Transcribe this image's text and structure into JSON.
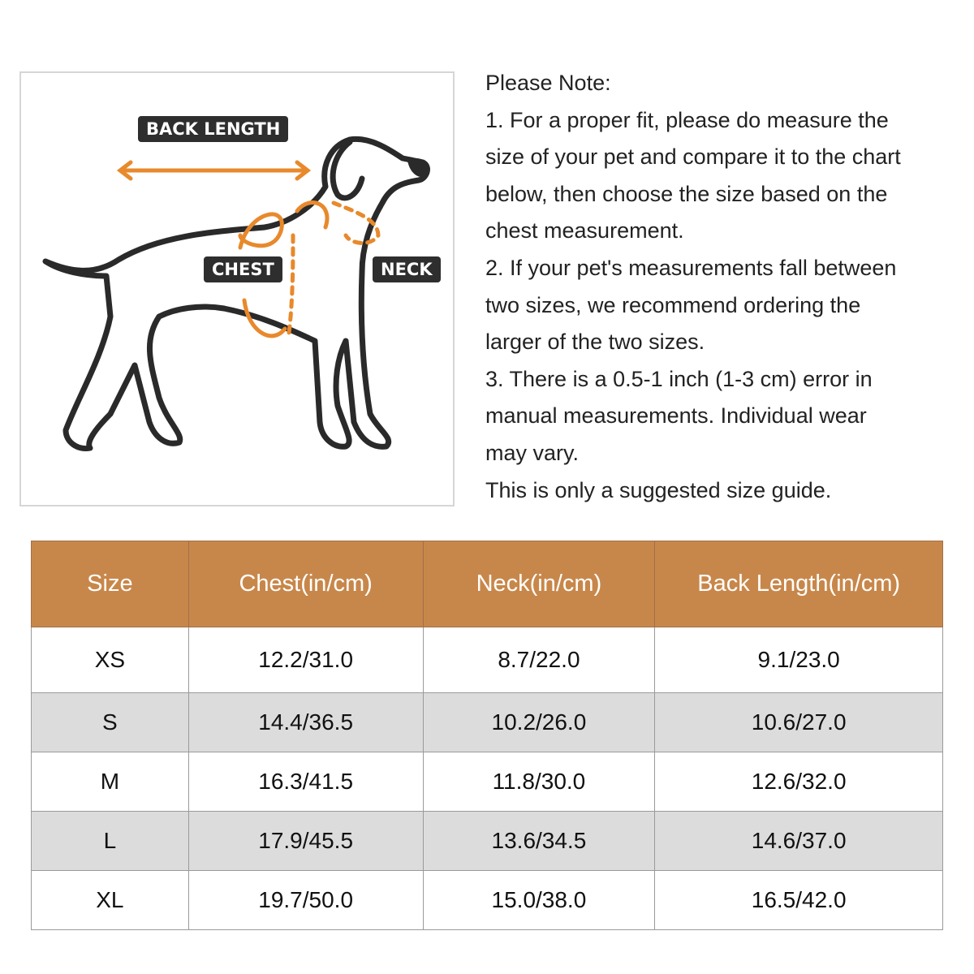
{
  "diagram": {
    "labels": {
      "back_length": "BACK LENGTH",
      "chest": "CHEST",
      "neck": "NECK"
    },
    "accent_color": "#e8892c"
  },
  "notes": {
    "lines": [
      "Please Note:",
      "1. For a proper fit, please do measure the",
      "size of your pet and compare it to the chart",
      "below, then choose the size based on the",
      "chest measurement.",
      "2. If your pet's measurements fall between",
      "two sizes, we recommend ordering the",
      "larger of the two sizes.",
      "3. There is a 0.5-1 inch (1-3 cm) error in",
      "manual measurements. Individual wear",
      "may vary.",
      "This is only a suggested size guide."
    ]
  },
  "table": {
    "header_color": "#c8874a",
    "headers": [
      "Size",
      "Chest(in/cm)",
      "Neck(in/cm)",
      "Back Length(in/cm)"
    ],
    "rows": [
      [
        "XS",
        "12.2/31.0",
        "8.7/22.0",
        "9.1/23.0"
      ],
      [
        "S",
        "14.4/36.5",
        "10.2/26.0",
        "10.6/27.0"
      ],
      [
        "M",
        "16.3/41.5",
        "11.8/30.0",
        "12.6/32.0"
      ],
      [
        "L",
        "17.9/45.5",
        "13.6/34.5",
        "14.6/37.0"
      ],
      [
        "XL",
        "19.7/50.0",
        "15.0/38.0",
        "16.5/42.0"
      ]
    ]
  }
}
